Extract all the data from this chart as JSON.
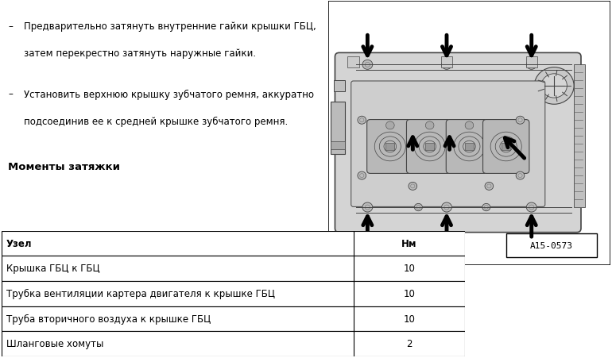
{
  "bg_color": "#ffffff",
  "fig_width": 7.82,
  "fig_height": 4.59,
  "text_lines": [
    [
      "–",
      "Предварительно затянуть внутренние гайки крышки ГБЦ,",
      "затем перекрестно затянуть наружные гайки."
    ],
    [
      "–",
      "Установить верхнюю крышку зубчатого ремня, аккуратно",
      "подсоединив ее к средней крышке зубчатого ремня."
    ]
  ],
  "section_title": "Моменты затяжки",
  "table_headers": [
    "Узел",
    "Нм"
  ],
  "table_rows": [
    [
      "Крышка ГБЦ к ГБЦ",
      "10"
    ],
    [
      "Трубка вентиляции картера двигателя к крышке ГБЦ",
      "10"
    ],
    [
      "Труба вторичного воздуха к крышке ГБЦ",
      "10"
    ],
    [
      "Шланговые хомуты",
      "2"
    ]
  ],
  "image_label": "A15-0573",
  "cover_color": "#d4d4d4",
  "cover_edge": "#444444",
  "inner_color": "#c8c8c8",
  "arrow_color": "#000000",
  "bolt_color": "#aaaaaa",
  "label_fontsize": 8,
  "text_fontsize": 8.5,
  "table_fontsize": 8.5,
  "col_split": 0.76
}
